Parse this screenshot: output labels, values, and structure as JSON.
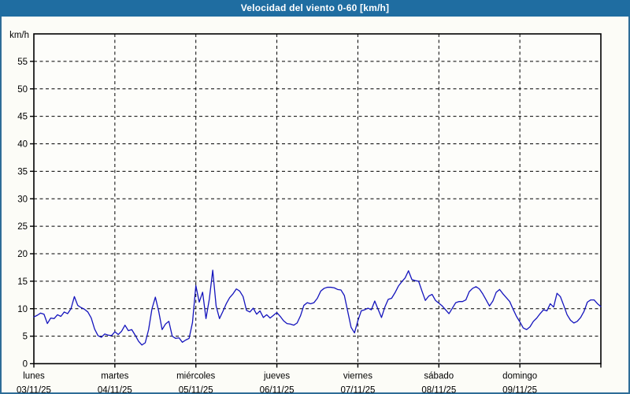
{
  "title": "Velocidad del viento 0-60 [km/h]",
  "colors": {
    "titlebar_bg": "#1f6da1",
    "window_border": "#2e6d98",
    "page_bg": "#fcfcf7",
    "plot_bg": "#fdfdfa",
    "axis": "#000000",
    "grid": "#000000",
    "line": "#1414bd",
    "title_text": "#ffffff",
    "label_text": "#000000"
  },
  "chart_data": {
    "type": "line",
    "title": "Velocidad del viento 0-60 [km/h]",
    "unit_label": "km/h",
    "ylabel": "km/h",
    "xlabel": "",
    "ylim": [
      0,
      60
    ],
    "yticks": [
      0,
      5,
      10,
      15,
      20,
      25,
      30,
      35,
      40,
      45,
      50,
      55
    ],
    "grid": "dashed",
    "legend": "none",
    "days": [
      {
        "name": "lunes",
        "date": "03/11/25"
      },
      {
        "name": "martes",
        "date": "04/11/25"
      },
      {
        "name": "miércoles",
        "date": "05/11/25"
      },
      {
        "name": "jueves",
        "date": "06/11/25"
      },
      {
        "name": "viernes",
        "date": "07/11/25"
      },
      {
        "name": "sábado",
        "date": "08/11/25"
      },
      {
        "name": "domingo",
        "date": "09/11/25"
      }
    ],
    "points_per_day": 24,
    "series": [
      {
        "name": "velocidad_viento_kmh",
        "color": "#1414bd",
        "values": [
          8.5,
          8.8,
          9.2,
          9.0,
          7.3,
          8.3,
          8.2,
          8.9,
          8.6,
          9.4,
          9.1,
          10.0,
          12.2,
          10.6,
          10.2,
          9.9,
          9.4,
          8.3,
          6.3,
          5.1,
          4.8,
          5.4,
          5.2,
          5.1,
          5.8,
          5.3,
          5.9,
          7.0,
          6.0,
          6.2,
          5.2,
          4.1,
          3.4,
          3.8,
          6.2,
          10.0,
          12.1,
          9.5,
          6.2,
          7.2,
          7.7,
          5.0,
          4.6,
          4.7,
          3.9,
          4.3,
          4.6,
          7.5,
          14.2,
          11.2,
          13.0,
          8.2,
          11.8,
          17.0,
          10.5,
          8.2,
          9.5,
          10.9,
          12.0,
          12.7,
          13.6,
          13.2,
          12.2,
          9.7,
          9.4,
          10.1,
          9.0,
          9.6,
          8.4,
          8.9,
          8.3,
          8.8,
          9.3,
          8.6,
          7.8,
          7.3,
          7.2,
          7.0,
          7.4,
          8.7,
          10.6,
          11.1,
          10.9,
          11.1,
          11.9,
          13.2,
          13.7,
          13.9,
          13.9,
          13.8,
          13.5,
          13.4,
          12.4,
          9.5,
          6.6,
          5.6,
          7.8,
          9.6,
          9.8,
          10.1,
          9.8,
          11.4,
          9.9,
          8.4,
          10.3,
          11.7,
          11.9,
          12.9,
          14.1,
          14.9,
          15.6,
          16.9,
          15.3,
          15.1,
          15.0,
          13.2,
          11.5,
          12.3,
          12.6,
          11.5,
          11.0,
          10.5,
          9.8,
          9.1,
          10.1,
          11.1,
          11.3,
          11.3,
          11.6,
          13.1,
          13.7,
          14.0,
          13.6,
          12.7,
          11.6,
          10.5,
          11.4,
          13.0,
          13.5,
          12.7,
          12.0,
          11.3,
          9.9,
          8.6,
          7.6,
          6.5,
          6.2,
          6.7,
          7.7,
          8.3,
          9.1,
          9.8,
          9.6,
          10.9,
          10.3,
          12.8,
          12.2,
          10.6,
          8.9,
          7.9,
          7.4,
          7.7,
          8.4,
          9.5,
          11.2,
          11.6,
          11.6,
          10.9,
          10.4
        ]
      }
    ]
  }
}
